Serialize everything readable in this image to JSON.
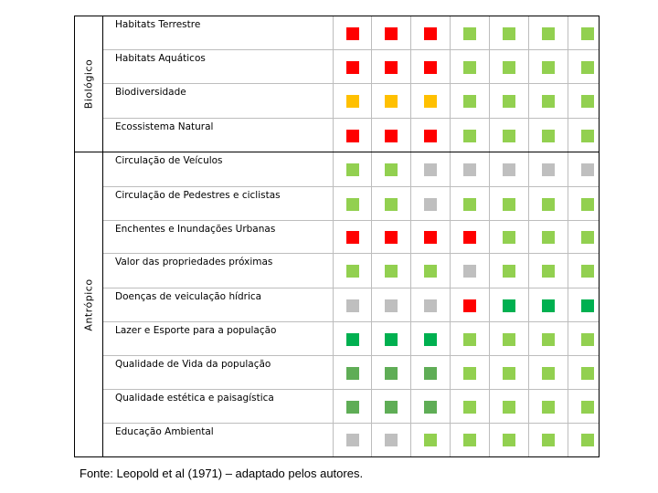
{
  "colors": {
    "red": "#ff0000",
    "yellow": "#ffc000",
    "lightgreen": "#92d050",
    "darkgreen": "#00b050",
    "midgreen": "#5fad56",
    "gray": "#bfbfbf"
  },
  "groups": [
    {
      "label": "Biológico"
    },
    {
      "label": "Antrópico"
    }
  ],
  "rows": [
    {
      "label": "Habitats Terrestre",
      "marks": [
        "red",
        "red",
        "red",
        "lightgreen",
        "lightgreen",
        "lightgreen",
        "lightgreen"
      ]
    },
    {
      "label": "Habitats Aquáticos",
      "marks": [
        "red",
        "red",
        "red",
        "lightgreen",
        "lightgreen",
        "lightgreen",
        "lightgreen"
      ]
    },
    {
      "label": "Biodiversidade",
      "marks": [
        "yellow",
        "yellow",
        "yellow",
        "lightgreen",
        "lightgreen",
        "lightgreen",
        "lightgreen"
      ]
    },
    {
      "label": "Ecossistema Natural",
      "marks": [
        "red",
        "red",
        "red",
        "lightgreen",
        "lightgreen",
        "lightgreen",
        "lightgreen"
      ]
    },
    {
      "label": "Circulação de Veículos",
      "marks": [
        "lightgreen",
        "lightgreen",
        "gray",
        "gray",
        "gray",
        "gray",
        "gray"
      ]
    },
    {
      "label": "Circulação de Pedestres e ciclistas",
      "marks": [
        "lightgreen",
        "lightgreen",
        "gray",
        "lightgreen",
        "lightgreen",
        "lightgreen",
        "lightgreen"
      ]
    },
    {
      "label": "Enchentes e Inundações Urbanas",
      "marks": [
        "red",
        "red",
        "red",
        "red",
        "lightgreen",
        "lightgreen",
        "lightgreen"
      ]
    },
    {
      "label": "Valor das propriedades próximas",
      "marks": [
        "lightgreen",
        "lightgreen",
        "lightgreen",
        "gray",
        "lightgreen",
        "lightgreen",
        "lightgreen"
      ]
    },
    {
      "label": "Doenças de veiculação hídrica",
      "marks": [
        "gray",
        "gray",
        "gray",
        "red",
        "darkgreen",
        "darkgreen",
        "darkgreen"
      ]
    },
    {
      "label": "Lazer e Esporte para a população",
      "marks": [
        "darkgreen",
        "darkgreen",
        "darkgreen",
        "lightgreen",
        "lightgreen",
        "lightgreen",
        "lightgreen"
      ]
    },
    {
      "label": "Qualidade de Vida da população",
      "marks": [
        "midgreen",
        "midgreen",
        "midgreen",
        "lightgreen",
        "lightgreen",
        "lightgreen",
        "lightgreen"
      ]
    },
    {
      "label": "Qualidade estética e paisagística",
      "marks": [
        "midgreen",
        "midgreen",
        "midgreen",
        "lightgreen",
        "lightgreen",
        "lightgreen",
        "lightgreen"
      ]
    },
    {
      "label": "Educação Ambiental",
      "marks": [
        "gray",
        "gray",
        "lightgreen",
        "lightgreen",
        "lightgreen",
        "lightgreen",
        "lightgreen"
      ]
    }
  ],
  "source": "Fonte: Leopold et al (1971) – adaptado pelos autores."
}
